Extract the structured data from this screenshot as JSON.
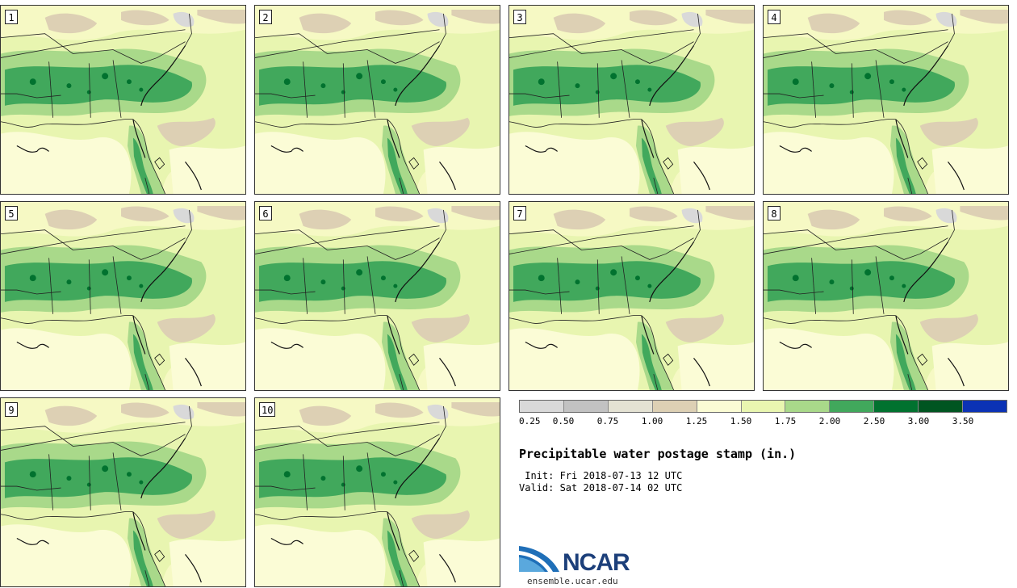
{
  "panels": [
    {
      "label": "1"
    },
    {
      "label": "2"
    },
    {
      "label": "3"
    },
    {
      "label": "4"
    },
    {
      "label": "5"
    },
    {
      "label": "6"
    },
    {
      "label": "7"
    },
    {
      "label": "8"
    },
    {
      "label": "9"
    },
    {
      "label": "10"
    }
  ],
  "colorbar": {
    "colors": [
      "#d9d9d9",
      "#c2c2c2",
      "#e4e2d3",
      "#ddd0b4",
      "#fbfcd4",
      "#e9f6b0",
      "#a9d98a",
      "#41a85c",
      "#01722f",
      "#005521",
      "#0b32b5"
    ],
    "ticks": [
      "0.25",
      "0.50",
      "0.75",
      "1.00",
      "1.25",
      "1.50",
      "1.75",
      "2.00",
      "2.50",
      "3.00",
      "3.50"
    ]
  },
  "title": "Precipitable water postage stamp (in.)",
  "init": " Init: Fri 2018-07-13 12 UTC",
  "valid": "Valid: Sat 2018-07-14 02 UTC",
  "logo": {
    "text": "NCAR",
    "url": "ensemble.ucar.edu"
  }
}
